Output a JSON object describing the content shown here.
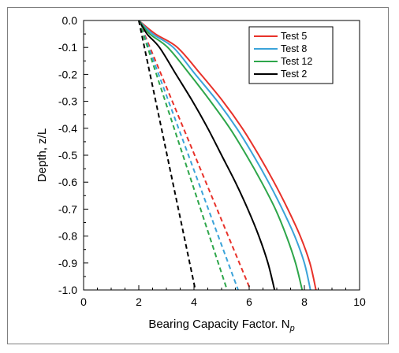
{
  "chart_data": {
    "type": "line",
    "xlabel": "Bearing Capacity Factor. N",
    "xlabel_subscript": "p",
    "ylabel": "Depth, z/L",
    "xlim": [
      0,
      10
    ],
    "ylim": [
      -1.0,
      0.0
    ],
    "x_ticks": [
      0,
      2,
      4,
      6,
      8,
      10
    ],
    "x_tick_labels": [
      "0",
      "2",
      "4",
      "6",
      "8",
      "10"
    ],
    "y_ticks": [
      0.0,
      -0.1,
      -0.2,
      -0.3,
      -0.4,
      -0.5,
      -0.6,
      -0.7,
      -0.8,
      -0.9,
      -1.0
    ],
    "y_tick_labels": [
      "0.0",
      "-0.1",
      "-0.2",
      "-0.3",
      "-0.4",
      "-0.5",
      "-0.6",
      "-0.7",
      "-0.8",
      "-0.9",
      "-1.0"
    ],
    "grid": false,
    "legend_position": "top-right",
    "series": [
      {
        "name": "Test 5",
        "color": "#e8322a",
        "style": "solid",
        "points": [
          [
            2.0,
            0.0
          ],
          [
            2.6,
            -0.05
          ],
          [
            3.4,
            -0.1
          ],
          [
            4.25,
            -0.2
          ],
          [
            5.05,
            -0.3
          ],
          [
            5.75,
            -0.4
          ],
          [
            6.35,
            -0.5
          ],
          [
            6.9,
            -0.6
          ],
          [
            7.4,
            -0.7
          ],
          [
            7.85,
            -0.8
          ],
          [
            8.2,
            -0.9
          ],
          [
            8.42,
            -1.0
          ]
        ]
      },
      {
        "name": "Test 8",
        "color": "#3ba3d9",
        "style": "solid",
        "points": [
          [
            2.0,
            0.0
          ],
          [
            2.5,
            -0.05
          ],
          [
            3.25,
            -0.1
          ],
          [
            4.05,
            -0.2
          ],
          [
            4.85,
            -0.3
          ],
          [
            5.55,
            -0.4
          ],
          [
            6.15,
            -0.5
          ],
          [
            6.7,
            -0.6
          ],
          [
            7.2,
            -0.7
          ],
          [
            7.65,
            -0.8
          ],
          [
            8.0,
            -0.9
          ],
          [
            8.22,
            -1.0
          ]
        ]
      },
      {
        "name": "Test 12",
        "color": "#2ea64a",
        "style": "solid",
        "points": [
          [
            2.0,
            0.0
          ],
          [
            2.4,
            -0.05
          ],
          [
            3.05,
            -0.1
          ],
          [
            3.85,
            -0.2
          ],
          [
            4.6,
            -0.3
          ],
          [
            5.3,
            -0.4
          ],
          [
            5.9,
            -0.5
          ],
          [
            6.45,
            -0.6
          ],
          [
            6.95,
            -0.7
          ],
          [
            7.35,
            -0.8
          ],
          [
            7.68,
            -0.9
          ],
          [
            7.92,
            -1.0
          ]
        ]
      },
      {
        "name": "Test 2",
        "color": "#000000",
        "style": "solid",
        "points": [
          [
            2.0,
            0.0
          ],
          [
            2.3,
            -0.05
          ],
          [
            2.75,
            -0.1
          ],
          [
            3.35,
            -0.2
          ],
          [
            3.95,
            -0.3
          ],
          [
            4.5,
            -0.4
          ],
          [
            5.0,
            -0.5
          ],
          [
            5.5,
            -0.6
          ],
          [
            5.95,
            -0.7
          ],
          [
            6.35,
            -0.8
          ],
          [
            6.68,
            -0.9
          ],
          [
            6.92,
            -1.0
          ]
        ]
      },
      {
        "name": "",
        "color": "#e8322a",
        "style": "dashed",
        "points": [
          [
            2.0,
            0.0
          ],
          [
            6.05,
            -1.0
          ]
        ]
      },
      {
        "name": "",
        "color": "#3ba3d9",
        "style": "dashed",
        "points": [
          [
            2.0,
            0.0
          ],
          [
            5.6,
            -1.0
          ]
        ]
      },
      {
        "name": "",
        "color": "#2ea64a",
        "style": "dashed",
        "points": [
          [
            2.0,
            0.0
          ],
          [
            5.2,
            -1.0
          ]
        ]
      },
      {
        "name": "",
        "color": "#000000",
        "style": "dashed",
        "points": [
          [
            2.0,
            0.0
          ],
          [
            4.05,
            -1.0
          ]
        ]
      }
    ]
  }
}
